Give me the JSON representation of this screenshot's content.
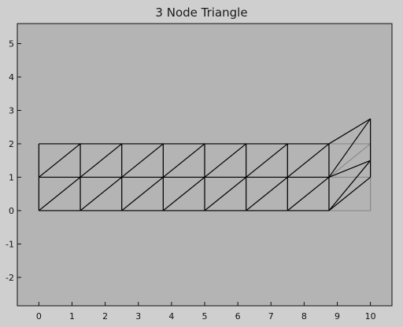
{
  "title": "3 Node Triangle",
  "colors": {
    "figure_bg": "#cfcfcf",
    "axes_bg": "#b4b4b4",
    "original_mesh": "#8a8a8a",
    "deformed_mesh": "#000000"
  },
  "chart_data": {
    "type": "mesh",
    "title": "3 Node Triangle",
    "xlim": [
      -0.65,
      10.65
    ],
    "ylim": [
      -2.85,
      5.6
    ],
    "x_ticks": [
      0,
      1,
      2,
      3,
      4,
      5,
      6,
      7,
      8,
      9,
      10
    ],
    "y_ticks": [
      -2,
      -1,
      0,
      1,
      2,
      3,
      4,
      5
    ],
    "x_tick_labels": [
      "0",
      "1",
      "2",
      "3",
      "4",
      "5",
      "6",
      "7",
      "8",
      "9",
      "10"
    ],
    "y_tick_labels": [
      "-2",
      "-1",
      "0",
      "1",
      "2",
      "3",
      "4",
      "5"
    ],
    "grid": false,
    "original_mesh": {
      "nodes": [
        [
          0,
          0
        ],
        [
          0,
          1
        ],
        [
          0,
          2
        ],
        [
          1.25,
          0
        ],
        [
          1.25,
          1
        ],
        [
          1.25,
          2
        ],
        [
          2.5,
          0
        ],
        [
          2.5,
          1
        ],
        [
          2.5,
          2
        ],
        [
          3.75,
          0
        ],
        [
          3.75,
          1
        ],
        [
          3.75,
          2
        ],
        [
          5,
          0
        ],
        [
          5,
          1
        ],
        [
          5,
          2
        ],
        [
          6.25,
          0
        ],
        [
          6.25,
          1
        ],
        [
          6.25,
          2
        ],
        [
          7.5,
          0
        ],
        [
          7.5,
          1
        ],
        [
          7.5,
          2
        ],
        [
          8.75,
          0
        ],
        [
          8.75,
          1
        ],
        [
          8.75,
          2
        ],
        [
          10,
          0
        ],
        [
          10,
          1
        ],
        [
          10,
          2
        ]
      ]
    },
    "deformed_mesh": {
      "nodes": [
        [
          0,
          0
        ],
        [
          0,
          1
        ],
        [
          0,
          2
        ],
        [
          1.25,
          0
        ],
        [
          1.25,
          1
        ],
        [
          1.25,
          2
        ],
        [
          2.5,
          0
        ],
        [
          2.5,
          1
        ],
        [
          2.5,
          2
        ],
        [
          3.75,
          0
        ],
        [
          3.75,
          1
        ],
        [
          3.75,
          2
        ],
        [
          5,
          0
        ],
        [
          5,
          1
        ],
        [
          5,
          2
        ],
        [
          6.25,
          0
        ],
        [
          6.25,
          1
        ],
        [
          6.25,
          2
        ],
        [
          7.5,
          0
        ],
        [
          7.5,
          1
        ],
        [
          7.5,
          2
        ],
        [
          8.75,
          0
        ],
        [
          8.75,
          1
        ],
        [
          8.75,
          2
        ],
        [
          10,
          1
        ],
        [
          10,
          1.5
        ],
        [
          10,
          2.75
        ]
      ]
    }
  }
}
